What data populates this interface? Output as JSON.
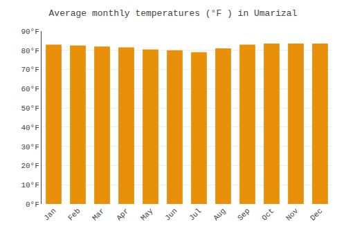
{
  "chart_data": {
    "type": "bar",
    "title": "Average monthly temperatures (°F ) in Umarizal",
    "categories": [
      "Jan",
      "Feb",
      "Mar",
      "Apr",
      "May",
      "Jun",
      "Jul",
      "Aug",
      "Sep",
      "Oct",
      "Nov",
      "Dec"
    ],
    "values": [
      83,
      82.5,
      82,
      81.5,
      80.5,
      80,
      79,
      81,
      83,
      83.5,
      83.5,
      83.5
    ],
    "color": "#E8900A",
    "ylim": [
      0,
      90
    ],
    "yticks": [
      {
        "value": 0,
        "label": "0°F"
      },
      {
        "value": 10,
        "label": "10°F"
      },
      {
        "value": 20,
        "label": "20°F"
      },
      {
        "value": 30,
        "label": "30°F"
      },
      {
        "value": 40,
        "label": "40°F"
      },
      {
        "value": 50,
        "label": "50°F"
      },
      {
        "value": 60,
        "label": "60°F"
      },
      {
        "value": 70,
        "label": "70°F"
      },
      {
        "value": 80,
        "label": "80°F"
      },
      {
        "value": 90,
        "label": "90°F"
      }
    ],
    "grid": true
  }
}
